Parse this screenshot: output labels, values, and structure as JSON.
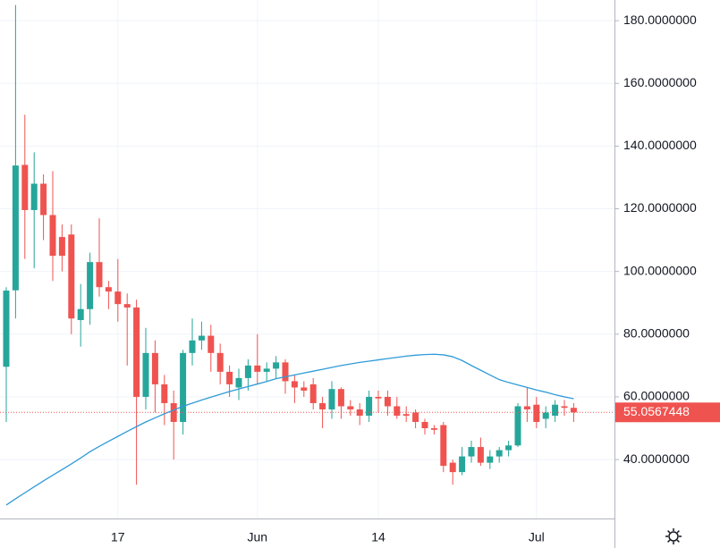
{
  "chart_data": {
    "type": "candlestick",
    "categories": [
      null,
      null,
      null,
      null,
      null,
      null,
      null,
      null,
      null,
      null,
      null,
      null,
      "17",
      null,
      null,
      null,
      null,
      null,
      null,
      null,
      null,
      null,
      null,
      null,
      null,
      null,
      null,
      "Jun",
      null,
      null,
      null,
      null,
      null,
      null,
      null,
      null,
      null,
      null,
      null,
      null,
      "14",
      null,
      null,
      null,
      null,
      null,
      null,
      null,
      null,
      null,
      null,
      null,
      null,
      null,
      null,
      null,
      null,
      "Jul",
      null,
      null,
      null,
      null
    ],
    "open": [
      69.6,
      94,
      134,
      119.6,
      128,
      118,
      111,
      111.8,
      84.5,
      88,
      103,
      95,
      93.6,
      89.6,
      88.5,
      60,
      74,
      64,
      58,
      52,
      74,
      78,
      79.5,
      74,
      68,
      63,
      66,
      70,
      68,
      69,
      71,
      65,
      63,
      64,
      58,
      56,
      62.5,
      57,
      56,
      54,
      60,
      60,
      57,
      54.5,
      55,
      52,
      50,
      51,
      39,
      36,
      41,
      44,
      39,
      41,
      43,
      44.5,
      57,
      57.5,
      53,
      54,
      57,
      56.5
    ],
    "high": [
      95,
      185,
      150,
      138,
      131,
      132,
      115,
      115,
      96,
      106,
      117,
      97,
      104,
      93,
      91,
      82,
      78,
      67,
      62,
      75,
      85,
      84,
      83,
      77,
      70,
      69,
      72,
      80,
      71,
      73,
      72,
      67,
      65,
      66,
      60,
      65,
      63,
      59,
      58,
      62,
      62,
      62,
      60,
      57,
      56,
      53,
      51,
      52,
      40,
      44,
      46,
      47,
      43,
      44,
      46,
      58,
      63,
      60,
      57,
      59,
      59,
      58
    ],
    "low": [
      52,
      85,
      104,
      101,
      110,
      97,
      100,
      80,
      76,
      83,
      92,
      88,
      84,
      70,
      32,
      56,
      55,
      51,
      40,
      48,
      70,
      75,
      68,
      64,
      60,
      59,
      62,
      64,
      65,
      66,
      61,
      58,
      60,
      56,
      50,
      53,
      53,
      54,
      51,
      52,
      55,
      54,
      53,
      52,
      50,
      48,
      48,
      36,
      32,
      35,
      39,
      38,
      37,
      39,
      41,
      44,
      52,
      50,
      50,
      52,
      54,
      52
    ],
    "close": [
      93.9,
      133.8,
      119.6,
      128,
      118,
      105,
      105,
      85,
      88,
      103,
      95,
      93.6,
      89.6,
      88.5,
      60,
      74,
      64,
      58,
      52,
      74,
      78,
      79.5,
      74,
      68,
      64,
      66,
      70,
      68,
      69,
      71,
      65,
      63,
      62,
      58,
      56,
      62.5,
      57,
      56,
      54,
      60,
      59.5,
      57,
      54,
      54,
      52,
      50,
      49.5,
      38,
      36,
      41,
      44,
      39,
      41,
      43,
      44.5,
      57,
      56,
      52,
      55,
      57.5,
      56.5,
      55.0567448
    ],
    "up_color": "#26a69a",
    "down_color": "#ef5350",
    "moving_average": {
      "color": "#2f9bd8",
      "values": [
        25.5,
        27.5,
        29.4,
        31.3,
        33.2,
        35,
        36.8,
        38.6,
        40.5,
        42.5,
        44.2,
        45.8,
        47.4,
        49,
        50.5,
        52,
        53.3,
        54.6,
        55.8,
        57,
        58,
        59,
        59.9,
        60.8,
        61.7,
        62.5,
        63.3,
        64.1,
        64.9,
        65.8,
        66.4,
        67,
        67.6,
        68.2,
        68.8,
        69.4,
        70,
        70.5,
        71,
        71.4,
        71.8,
        72.2,
        72.6,
        73,
        73.3,
        73.5,
        73.6,
        73.4,
        72.8,
        71.6,
        70,
        68.5,
        67,
        65.5,
        64.6,
        63.8,
        63,
        62.2,
        61.5,
        60.7,
        60,
        59.4
      ]
    },
    "ylim": [
      21.2,
      186.6
    ],
    "yticks": [
      {
        "value": 40,
        "label": "40.0000000"
      },
      {
        "value": 60,
        "label": "60.0000000"
      },
      {
        "value": 80,
        "label": "80.0000000"
      },
      {
        "value": 100,
        "label": "100.0000000"
      },
      {
        "value": 120,
        "label": "120.0000000"
      },
      {
        "value": 140,
        "label": "140.0000000"
      },
      {
        "value": 160,
        "label": "160.0000000"
      },
      {
        "value": 180,
        "label": "180.0000000"
      }
    ],
    "grid": true
  }
}
